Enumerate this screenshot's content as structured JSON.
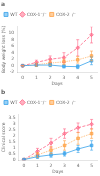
{
  "chart_data": [
    {
      "type": "line",
      "title": "a",
      "x_label": "Days",
      "y_label": "Body weight loss (%)",
      "x": [
        0,
        1,
        2,
        3,
        4,
        5
      ],
      "xlim": [
        -0.4,
        5.4
      ],
      "xticks": [
        0,
        1,
        2,
        3,
        4,
        5
      ],
      "ylim": [
        -2,
        12
      ],
      "yticks": [
        -2,
        0,
        2,
        4,
        6,
        8,
        10
      ],
      "grid": false,
      "legend": "upper left",
      "series": [
        {
          "name": "WT",
          "values": [
            0.0,
            0.2,
            0.2,
            -0.2,
            -0.3,
            1.5
          ],
          "errors": [
            0.1,
            0.4,
            0.5,
            0.5,
            0.6,
            1.2
          ],
          "marker": "square",
          "line_style": "solid"
        },
        {
          "name": "COX-1⁻/⁻",
          "values": [
            0.0,
            1.0,
            2.0,
            2.5,
            5.5,
            9.5
          ],
          "errors": [
            0.1,
            0.7,
            1.0,
            1.5,
            2.5,
            2.5
          ],
          "marker": "diamond",
          "line_style": "dashed"
        },
        {
          "name": "COX-2⁻/⁻",
          "values": [
            0.0,
            0.3,
            0.8,
            1.2,
            1.8,
            3.0
          ],
          "errors": [
            0.1,
            0.5,
            0.7,
            0.8,
            1.0,
            1.5
          ],
          "marker": "square",
          "line_style": "dotted"
        }
      ]
    },
    {
      "type": "line",
      "title": "b",
      "x_label": "Days",
      "y_label": "Clinical score",
      "x": [
        0,
        1,
        2,
        3,
        4,
        5
      ],
      "xlim": [
        -0.4,
        5.4
      ],
      "xticks": [
        0,
        1,
        2,
        3,
        4,
        5
      ],
      "ylim": [
        -0.05,
        3.8
      ],
      "yticks": [
        0,
        0.5,
        1,
        1.5,
        2,
        2.5,
        3,
        3.5
      ],
      "grid": false,
      "legend": "upper left",
      "series": [
        {
          "name": "WT",
          "values": [
            0.0,
            0.25,
            0.4,
            0.5,
            0.9,
            1.2
          ],
          "errors": [
            0.0,
            0.15,
            0.2,
            0.2,
            0.3,
            0.4
          ],
          "marker": "square",
          "line_style": "solid"
        },
        {
          "name": "COX-1⁻/⁻",
          "values": [
            0.0,
            0.7,
            1.4,
            2.2,
            2.7,
            3.0
          ],
          "errors": [
            0.0,
            0.25,
            0.4,
            0.4,
            0.4,
            0.4
          ],
          "marker": "diamond",
          "line_style": "dashed"
        },
        {
          "name": "COX-2⁻/⁻",
          "values": [
            0.0,
            0.4,
            0.8,
            1.2,
            1.8,
            2.2
          ],
          "errors": [
            0.0,
            0.2,
            0.3,
            0.4,
            0.5,
            0.4
          ],
          "marker": "square",
          "line_style": "dotted"
        }
      ]
    }
  ]
}
